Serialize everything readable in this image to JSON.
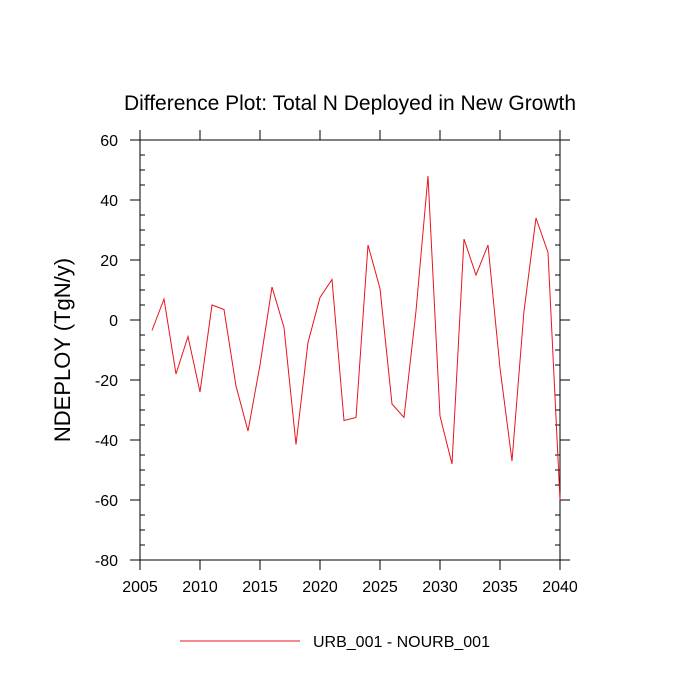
{
  "chart_data": {
    "type": "line",
    "title": "Difference Plot: Total N Deployed in New Growth",
    "xlabel": "",
    "ylabel": "NDEPLOY  (TgN/y)",
    "xlim": [
      2005,
      2040
    ],
    "ylim": [
      -80,
      60
    ],
    "x_ticks": [
      2005,
      2010,
      2015,
      2020,
      2025,
      2030,
      2035,
      2040
    ],
    "y_ticks": [
      -80,
      -60,
      -40,
      -20,
      0,
      20,
      40,
      60
    ],
    "x_tick_labels": [
      "2005",
      "2010",
      "2015",
      "2020",
      "2025",
      "2030",
      "2035",
      "2040"
    ],
    "y_tick_labels": [
      "-80",
      "-60",
      "-40",
      "-20",
      "0",
      "20",
      "40",
      "60"
    ],
    "grid": false,
    "legend_position": "bottom-center",
    "series": [
      {
        "name": "URB_001 - NOURB_001",
        "color": "#e8141c",
        "x": [
          2006,
          2007,
          2008,
          2009,
          2010,
          2011,
          2012,
          2013,
          2014,
          2015,
          2016,
          2017,
          2018,
          2019,
          2020,
          2021,
          2022,
          2023,
          2024,
          2025,
          2026,
          2027,
          2028,
          2029,
          2030,
          2031,
          2032,
          2033,
          2034,
          2035,
          2036,
          2037,
          2038,
          2039,
          2040
        ],
        "values": [
          -3.5,
          7,
          -18,
          -5.5,
          -24,
          5,
          3.5,
          -22,
          -37,
          -15,
          11,
          -2.5,
          -41.5,
          -7.5,
          7.5,
          13.5,
          -33.5,
          -32.5,
          25,
          10.5,
          -28,
          -32.5,
          3,
          48,
          -32,
          -48,
          27,
          15,
          25,
          -16,
          -47,
          3,
          34,
          22.5,
          -60
        ]
      }
    ]
  }
}
